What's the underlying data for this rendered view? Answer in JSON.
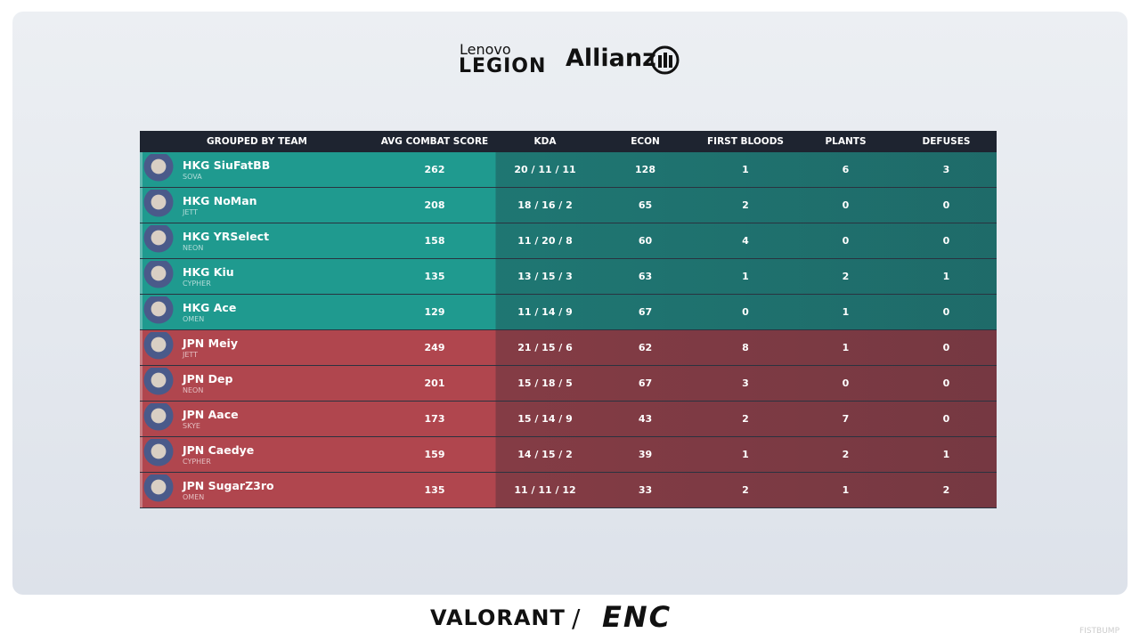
{
  "header": {
    "sponsor_1_top": "Lenovo",
    "sponsor_1_bottom": "LEGION",
    "sponsor_2": "Allianz"
  },
  "table": {
    "columns": [
      "GROUPED BY TEAM",
      "AVG COMBAT SCORE",
      "KDA",
      "ECON",
      "FIRST BLOODS",
      "PLANTS",
      "DEFUSES"
    ],
    "rows": [
      {
        "player": "HKG SiuFatBB",
        "agent": "SOVA",
        "acs": 262,
        "kda": "20 / 11 / 11",
        "econ": 128,
        "first_bloods": 1,
        "plants": 6,
        "defuses": 3,
        "color": "#1f9a8f"
      },
      {
        "player": "HKG NoMan",
        "agent": "JETT",
        "acs": 208,
        "kda": "18 / 16 / 2",
        "econ": 65,
        "first_bloods": 2,
        "plants": 0,
        "defuses": 0,
        "color": "#1f9a8f"
      },
      {
        "player": "HKG YRSelect",
        "agent": "NEON",
        "acs": 158,
        "kda": "11 / 20 / 8",
        "econ": 60,
        "first_bloods": 4,
        "plants": 0,
        "defuses": 0,
        "color": "#1f9a8f"
      },
      {
        "player": "HKG Kiu",
        "agent": "CYPHER",
        "acs": 135,
        "kda": "13 / 15 / 3",
        "econ": 63,
        "first_bloods": 1,
        "plants": 2,
        "defuses": 1,
        "color": "#1f9a8f"
      },
      {
        "player": "HKG Ace",
        "agent": "OMEN",
        "acs": 129,
        "kda": "11 / 14 / 9",
        "econ": 67,
        "first_bloods": 0,
        "plants": 1,
        "defuses": 0,
        "color": "#1f9a8f"
      },
      {
        "player": "JPN Meiy",
        "agent": "JETT",
        "acs": 249,
        "kda": "21 / 15 / 6",
        "econ": 62,
        "first_bloods": 8,
        "plants": 1,
        "defuses": 0,
        "color": "#b0464e"
      },
      {
        "player": "JPN Dep",
        "agent": "NEON",
        "acs": 201,
        "kda": "15 / 18 / 5",
        "econ": 67,
        "first_bloods": 3,
        "plants": 0,
        "defuses": 0,
        "color": "#b0464e"
      },
      {
        "player": "JPN Aace",
        "agent": "SKYE",
        "acs": 173,
        "kda": "15 / 14 / 9",
        "econ": 43,
        "first_bloods": 2,
        "plants": 7,
        "defuses": 0,
        "color": "#b0464e"
      },
      {
        "player": "JPN Caedye",
        "agent": "CYPHER",
        "acs": 159,
        "kda": "14 / 15 / 2",
        "econ": 39,
        "first_bloods": 1,
        "plants": 2,
        "defuses": 1,
        "color": "#b0464e"
      },
      {
        "player": "JPN SugarZ3ro",
        "agent": "OMEN",
        "acs": 135,
        "kda": "11 / 11 / 12",
        "econ": 33,
        "first_bloods": 2,
        "plants": 1,
        "defuses": 2,
        "color": "#b0464e"
      }
    ]
  },
  "footer": {
    "game": "VALORANT",
    "separator": "/",
    "event": "ENC",
    "watermark": "FISTBUMP"
  }
}
